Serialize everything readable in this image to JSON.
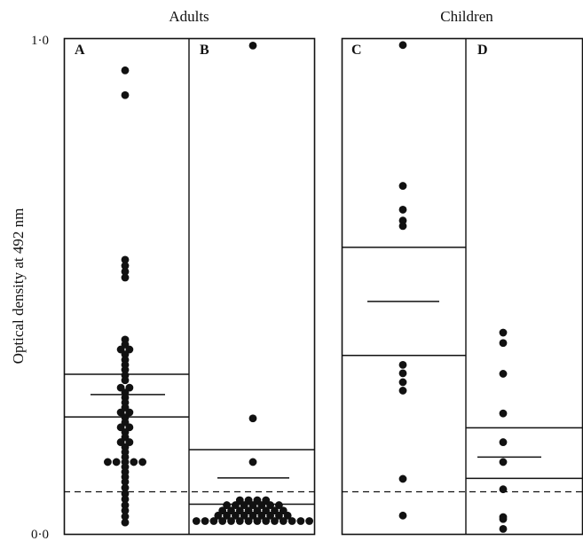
{
  "chart_data": {
    "type": "scatter",
    "ylabel": "Optical density at 492 nm",
    "ylim": [
      0.0,
      1.0
    ],
    "y_ticks": [
      "0·0",
      "1·0"
    ],
    "groups": [
      {
        "title": "Adults",
        "panels": [
          "A",
          "B"
        ]
      },
      {
        "title": "Children",
        "panels": [
          "C",
          "D"
        ]
      }
    ],
    "cutoff": 0.085,
    "panels": [
      {
        "label": "A",
        "mean": 0.281,
        "sd_band": [
          0.236,
          0.322
        ],
        "points": [
          {
            "y": 0.935,
            "n": 1
          },
          {
            "y": 0.885,
            "n": 1
          },
          {
            "y": 0.553,
            "n": 1
          },
          {
            "y": 0.541,
            "n": 1
          },
          {
            "y": 0.529,
            "n": 1
          },
          {
            "y": 0.517,
            "n": 1
          },
          {
            "y": 0.392,
            "n": 1
          },
          {
            "y": 0.382,
            "n": 1
          },
          {
            "y": 0.372,
            "n": 2
          },
          {
            "y": 0.362,
            "n": 1
          },
          {
            "y": 0.351,
            "n": 1
          },
          {
            "y": 0.341,
            "n": 1
          },
          {
            "y": 0.331,
            "n": 1
          },
          {
            "y": 0.32,
            "n": 1
          },
          {
            "y": 0.31,
            "n": 1
          },
          {
            "y": 0.295,
            "n": 2
          },
          {
            "y": 0.285,
            "n": 1
          },
          {
            "y": 0.275,
            "n": 1
          },
          {
            "y": 0.265,
            "n": 1
          },
          {
            "y": 0.255,
            "n": 1
          },
          {
            "y": 0.245,
            "n": 2
          },
          {
            "y": 0.235,
            "n": 1
          },
          {
            "y": 0.225,
            "n": 1
          },
          {
            "y": 0.215,
            "n": 2
          },
          {
            "y": 0.205,
            "n": 1
          },
          {
            "y": 0.195,
            "n": 1
          },
          {
            "y": 0.185,
            "n": 2
          },
          {
            "y": 0.175,
            "n": 1
          },
          {
            "y": 0.165,
            "n": 1
          },
          {
            "y": 0.155,
            "n": 1
          },
          {
            "y": 0.145,
            "n": 5
          },
          {
            "y": 0.135,
            "n": 1
          },
          {
            "y": 0.125,
            "n": 1
          },
          {
            "y": 0.115,
            "n": 1
          },
          {
            "y": 0.105,
            "n": 1
          },
          {
            "y": 0.093,
            "n": 1
          },
          {
            "y": 0.081,
            "n": 1
          },
          {
            "y": 0.07,
            "n": 1
          },
          {
            "y": 0.058,
            "n": 1
          },
          {
            "y": 0.047,
            "n": 1
          },
          {
            "y": 0.035,
            "n": 1
          },
          {
            "y": 0.023,
            "n": 1
          }
        ]
      },
      {
        "label": "B",
        "mean": 0.113,
        "sd_band": [
          0.06,
          0.17
        ],
        "points": [
          {
            "y": 0.985,
            "n": 1
          },
          {
            "y": 0.233,
            "n": 1
          },
          {
            "y": 0.145,
            "n": 1
          },
          {
            "y": 0.068,
            "n": 4
          },
          {
            "y": 0.058,
            "n": 7
          },
          {
            "y": 0.047,
            "n": 8
          },
          {
            "y": 0.037,
            "n": 9
          },
          {
            "y": 0.026,
            "n": 14
          }
        ]
      },
      {
        "label": "C",
        "mean": 0.469,
        "sd_band": [
          0.36,
          0.578
        ],
        "points": [
          {
            "y": 0.986,
            "n": 1
          },
          {
            "y": 0.702,
            "n": 1
          },
          {
            "y": 0.654,
            "n": 1
          },
          {
            "y": 0.632,
            "n": 1
          },
          {
            "y": 0.621,
            "n": 1
          },
          {
            "y": 0.341,
            "n": 1
          },
          {
            "y": 0.324,
            "n": 1
          },
          {
            "y": 0.306,
            "n": 1
          },
          {
            "y": 0.289,
            "n": 1
          },
          {
            "y": 0.111,
            "n": 1
          },
          {
            "y": 0.037,
            "n": 1
          }
        ]
      },
      {
        "label": "D",
        "mean": 0.155,
        "sd_band": [
          0.112,
          0.214
        ],
        "points": [
          {
            "y": 0.406,
            "n": 1
          },
          {
            "y": 0.385,
            "n": 1
          },
          {
            "y": 0.323,
            "n": 1
          },
          {
            "y": 0.243,
            "n": 1
          },
          {
            "y": 0.185,
            "n": 1
          },
          {
            "y": 0.145,
            "n": 1
          },
          {
            "y": 0.09,
            "n": 1
          },
          {
            "y": 0.034,
            "n": 1
          },
          {
            "y": 0.03,
            "n": 1
          },
          {
            "y": 0.01,
            "n": 1
          }
        ]
      }
    ]
  }
}
